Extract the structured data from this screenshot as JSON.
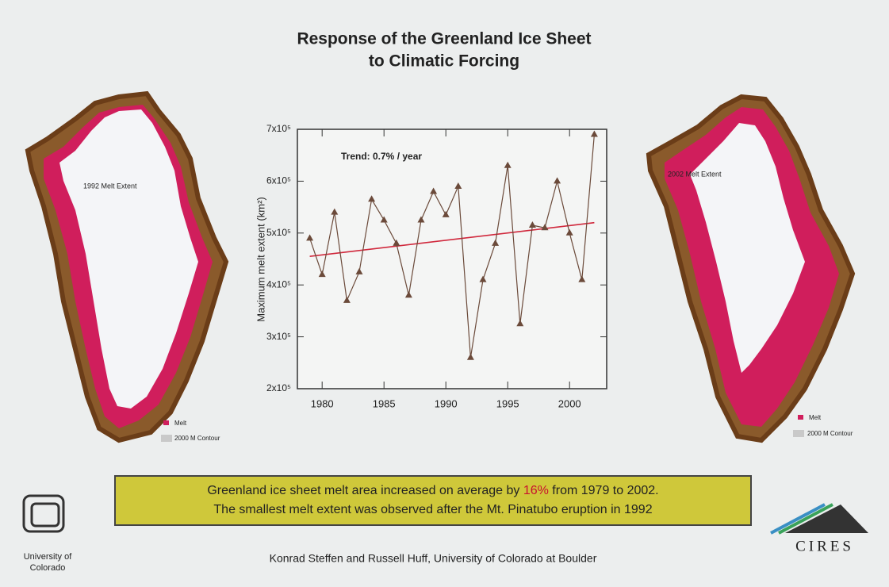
{
  "slide": {
    "title_lines": [
      "Response of the Greenland Ice Sheet",
      "to Climatic Forcing"
    ],
    "left_map": {
      "label": "1992 Melt Extent",
      "legend": [
        "Melt",
        "2000 M Contour"
      ]
    },
    "right_map": {
      "label": "2002 Melt Extent",
      "legend": [
        "Melt",
        "2000 M Contour"
      ]
    },
    "summary": {
      "line1_before": "Greenland ice sheet melt area increased on average by ",
      "line1_highlight": "16%",
      "line1_after": " from 1979 to 2002.",
      "line2": "The smallest melt extent was observed after the Mt. Pinatubo eruption in 1992"
    },
    "logo_left": [
      "University of",
      "Colorado"
    ],
    "logo_right": "CIRES",
    "credit": "Konrad Steffen and Russell Huff, University of Colorado at Boulder"
  },
  "chart_data": {
    "type": "line",
    "y_label": "Maximum melt extent (km²)",
    "annotation": "Trend: 0.7% / year",
    "x": [
      1979,
      1980,
      1981,
      1982,
      1983,
      1984,
      1985,
      1986,
      1987,
      1988,
      1989,
      1990,
      1991,
      1992,
      1993,
      1994,
      1995,
      1996,
      1997,
      1998,
      1999,
      2000,
      2001,
      2002
    ],
    "series": [
      {
        "color": "#6b4a3a",
        "values": [
          490000,
          420000,
          540000,
          370000,
          425000,
          565000,
          525000,
          480000,
          380000,
          525000,
          580000,
          535000,
          590000,
          260000,
          410000,
          480000,
          630000,
          325000,
          515000,
          510000,
          600000,
          500000,
          410000,
          690000
        ]
      }
    ],
    "trend_line": {
      "color": "#d0283c",
      "x": [
        1979,
        2002
      ],
      "values": [
        455000,
        520000
      ]
    },
    "xlim": [
      1978,
      2003
    ],
    "xticks": [
      1980,
      1985,
      1990,
      1995,
      2000
    ],
    "ylim": [
      200000,
      700000
    ],
    "yticks": [
      {
        "value": 200000,
        "label": "2x10⁵"
      },
      {
        "value": 300000,
        "label": "3x10⁵"
      },
      {
        "value": 400000,
        "label": "4x10⁵"
      },
      {
        "value": 500000,
        "label": "5x10⁵"
      },
      {
        "value": 600000,
        "label": "6x10⁵"
      },
      {
        "value": 700000,
        "label": "7x10⁵"
      }
    ]
  }
}
